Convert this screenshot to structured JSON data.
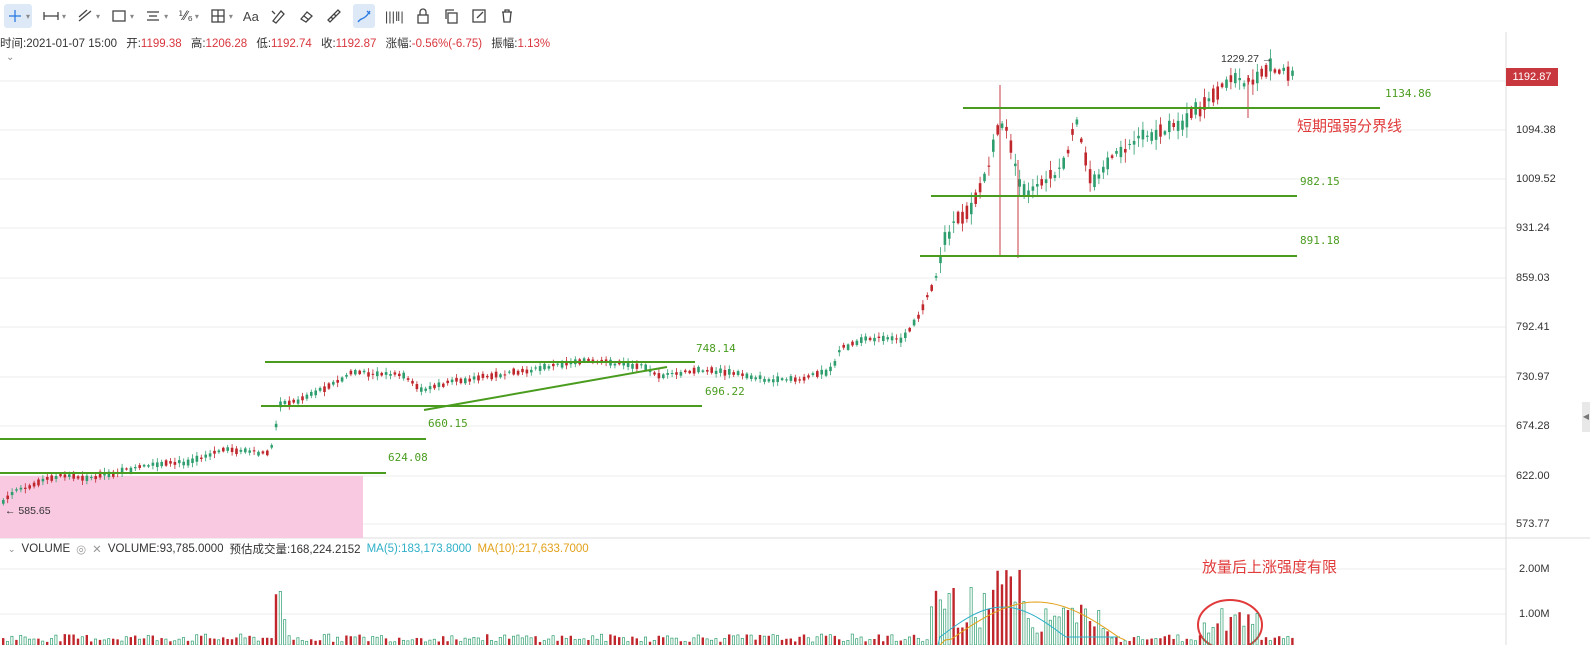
{
  "toolbar": {
    "tools": [
      {
        "name": "crosshair-icon",
        "caret": true,
        "active": true
      },
      {
        "name": "horizontal-ray-icon",
        "caret": true
      },
      {
        "name": "trend-line-icon",
        "caret": true
      },
      {
        "name": "rectangle-icon",
        "caret": true
      },
      {
        "name": "parallel-lines-icon",
        "caret": true
      },
      {
        "name": "fibonacci-icon",
        "label": "⅟⁄₆",
        "caret": true
      },
      {
        "name": "measure-grid-icon",
        "caret": true
      },
      {
        "name": "text-icon",
        "label": "Aa"
      },
      {
        "name": "magic-pen-icon"
      },
      {
        "name": "eraser-icon"
      },
      {
        "name": "ruler-icon"
      },
      {
        "name": "drawing-mode-icon",
        "active": true
      },
      {
        "name": "barcode-icon",
        "label": "|||‖|"
      },
      {
        "name": "lock-icon"
      },
      {
        "name": "copy-icon"
      },
      {
        "name": "export-icon"
      },
      {
        "name": "trash-icon"
      }
    ]
  },
  "info": {
    "time_label": "时间:",
    "time": "2021-01-07 15:00",
    "open_label": "开:",
    "open": "1199.38",
    "high_label": "高:",
    "high": "1206.28",
    "low_label": "低:",
    "low": "1192.74",
    "close_label": "收:",
    "close": "1192.87",
    "change_label": "涨幅:",
    "change": "-0.56%(-6.75)",
    "amplitude_label": "振幅:",
    "amplitude": "1.13%"
  },
  "colors": {
    "up": "#2e9e6e",
    "down": "#c0272d",
    "level_line": "#4a9c1f",
    "level_text": "#4a9c1f",
    "annotation": "#e03a3a",
    "pink_zone": "#f9c9e2",
    "grid": "#eeeeee",
    "ma5": "#2fb0c8",
    "ma10": "#e2a11a"
  },
  "current_price": "1192.87",
  "price_axis": [
    "1094.38",
    "1009.52",
    "931.24",
    "859.03",
    "792.41",
    "730.97",
    "674.28",
    "622.00",
    "573.77"
  ],
  "volume_axis": [
    "2.00M",
    "1.00M"
  ],
  "levels": [
    {
      "value": 1134.86,
      "label": "1134.86"
    },
    {
      "value": 982.15,
      "label": "982.15"
    },
    {
      "value": 891.18,
      "label": "891.18"
    },
    {
      "value": 748.14,
      "label": "748.14"
    },
    {
      "value": 696.22,
      "label": "696.22"
    },
    {
      "value": 660.15,
      "label": "660.15"
    },
    {
      "value": 624.08,
      "label": "624.08"
    }
  ],
  "marks": {
    "high_mark": "1229.27",
    "low_mark": "585.65"
  },
  "annotations": {
    "top": "短期强弱分界线",
    "volume": "放量后上涨强度有限"
  },
  "volume_legend": {
    "title": "VOLUME",
    "volume": "VOLUME:93,785.0000",
    "forecast": "预估成交量:168,224.2152",
    "ma5": "MA(5):183,173.8000",
    "ma10": "MA(10):217,633.7000"
  }
}
